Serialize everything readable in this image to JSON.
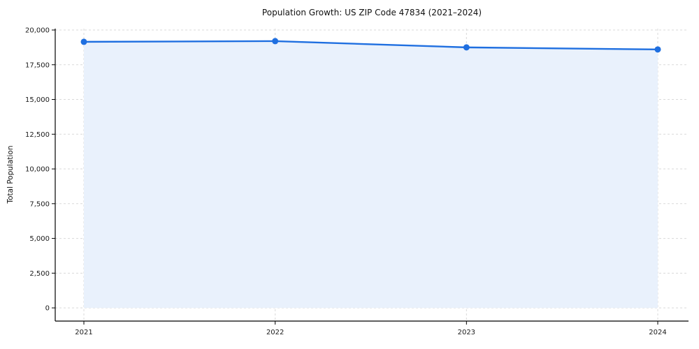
{
  "chart_data": {
    "type": "line",
    "title": "Population Growth: US ZIP Code 47834 (2021–2024)",
    "xlabel": "",
    "ylabel": "Total Population",
    "categories": [
      "2021",
      "2022",
      "2023",
      "2024"
    ],
    "series": [
      {
        "name": "Total Population",
        "values": [
          19150,
          19200,
          18750,
          18600
        ]
      }
    ],
    "ylim": [
      0,
      20000
    ],
    "yticks": [
      0,
      2500,
      5000,
      7500,
      10000,
      12500,
      15000,
      17500,
      20000
    ],
    "ytick_labels": [
      "0",
      "2,500",
      "5,000",
      "7,500",
      "10,000",
      "12,500",
      "15,000",
      "17,500",
      "20,000"
    ],
    "grid": "dashed",
    "legend_position": "none",
    "colors": {
      "line": "#1f6fe0",
      "marker": "#1f6fe0",
      "area_fill": "#e9f1fc",
      "grid": "#d9d9d9",
      "spine": "#000000",
      "text": "#1a1a1a"
    }
  }
}
